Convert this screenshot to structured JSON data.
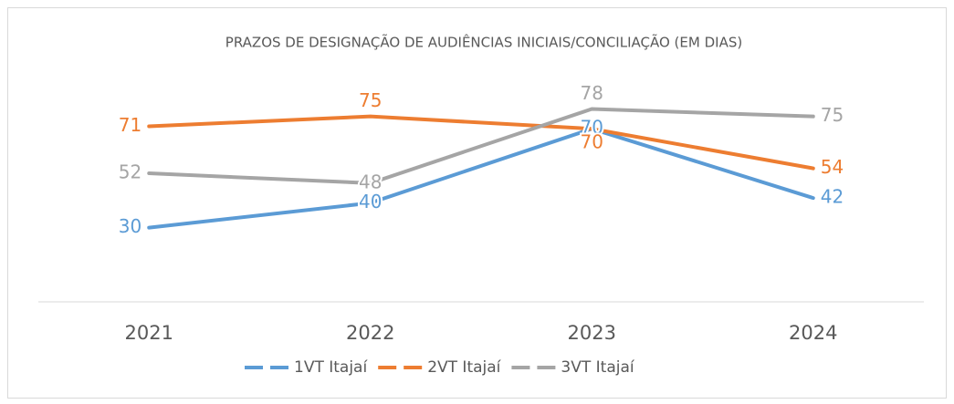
{
  "chart_data": {
    "type": "line",
    "title": "PRAZOS DE DESIGNAÇÃO DE AUDIÊNCIAS INICIAIS/CONCILIAÇÃO (EM DIAS)",
    "categories": [
      "2021",
      "2022",
      "2023",
      "2024"
    ],
    "series": [
      {
        "name": "1VT Itajaí",
        "color": "#5b9bd5",
        "values": [
          30,
          40,
          70,
          42
        ]
      },
      {
        "name": "2VT Itajaí",
        "color": "#ed7d31",
        "values": [
          71,
          75,
          70,
          54
        ]
      },
      {
        "name": "3VT Itajaí",
        "color": "#a5a5a5",
        "values": [
          52,
          48,
          78,
          75
        ]
      }
    ],
    "ylim": [
      0,
      90
    ],
    "legend": "bottom"
  }
}
